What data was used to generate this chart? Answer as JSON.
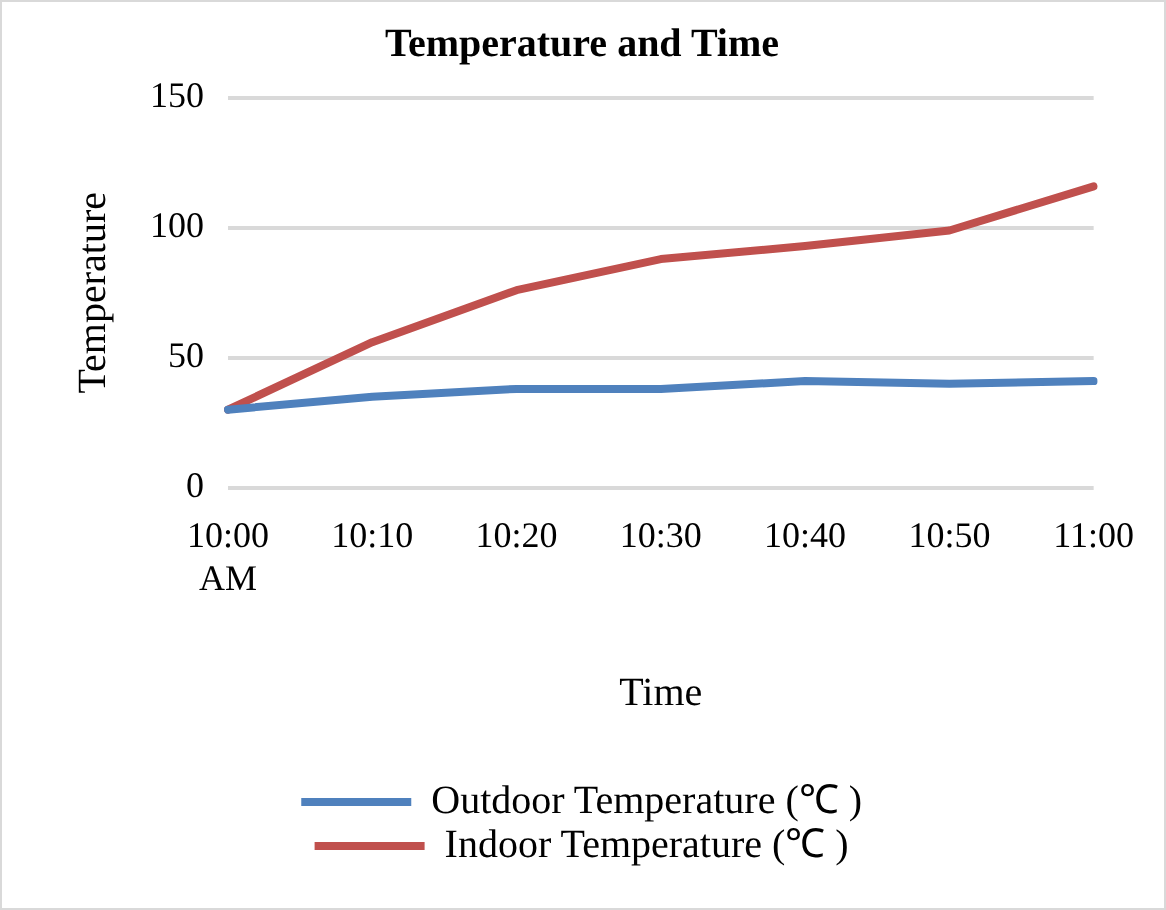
{
  "chart_data": {
    "type": "line",
    "title": "Temperature and Time",
    "xlabel": "Time",
    "ylabel": "Temperature",
    "categories": [
      "10:00 AM",
      "10:10",
      "10:20",
      "10:30",
      "10:40",
      "10:50",
      "11:00"
    ],
    "series": [
      {
        "name": "Outdoor Temperature (℃ )",
        "color": "#4f81bd",
        "values": [
          30,
          35,
          38,
          38,
          41,
          40,
          41
        ]
      },
      {
        "name": "Indoor Temperature (℃ )",
        "color": "#c0504d",
        "values": [
          30,
          56,
          76,
          88,
          93,
          99,
          116
        ]
      }
    ],
    "ylim": [
      0,
      150
    ],
    "yticks": [
      0,
      50,
      100,
      150
    ],
    "grid": "y",
    "legend": "bottom",
    "marker": "none",
    "line_style": "solid"
  }
}
